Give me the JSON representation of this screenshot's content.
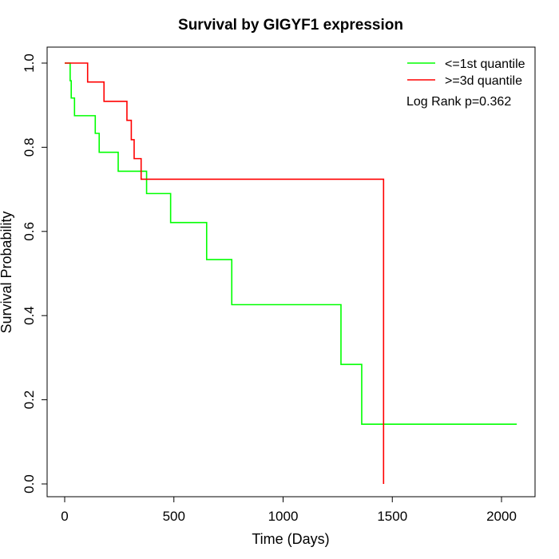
{
  "chart_data": {
    "type": "line",
    "title": "Survival by GIGYF1 expression",
    "xlabel": "Time (Days)",
    "ylabel": "Survival Probability",
    "xlim": [
      0,
      2070
    ],
    "ylim": [
      0,
      1
    ],
    "x_ticks": [
      0,
      500,
      1000,
      1500,
      2000
    ],
    "y_ticks": [
      0.0,
      0.2,
      0.4,
      0.6,
      0.8,
      1.0
    ],
    "x_tick_labels": [
      "0",
      "500",
      "1000",
      "1500",
      "2000"
    ],
    "y_tick_labels": [
      "0.0",
      "0.2",
      "0.4",
      "0.6",
      "0.8",
      "1.0"
    ],
    "grid": false,
    "legend_position": "top-right",
    "series": [
      {
        "name": "<=1st quantile",
        "color": "#00ff00",
        "step": true,
        "x": [
          0,
          25,
          30,
          45,
          140,
          158,
          245,
          375,
          485,
          650,
          765,
          1265,
          1360,
          2070
        ],
        "y": [
          1.0,
          0.958,
          0.917,
          0.875,
          0.833,
          0.788,
          0.743,
          0.69,
          0.621,
          0.533,
          0.426,
          0.284,
          0.142,
          0.142
        ]
      },
      {
        "name": ">=3d quantile",
        "color": "#ff0000",
        "step": true,
        "x": [
          0,
          105,
          180,
          285,
          305,
          318,
          350,
          1460,
          1460
        ],
        "y": [
          1.0,
          0.955,
          0.909,
          0.864,
          0.818,
          0.773,
          0.724,
          0.724,
          0.0
        ]
      }
    ],
    "annotation": "Log Rank p=0.362"
  }
}
